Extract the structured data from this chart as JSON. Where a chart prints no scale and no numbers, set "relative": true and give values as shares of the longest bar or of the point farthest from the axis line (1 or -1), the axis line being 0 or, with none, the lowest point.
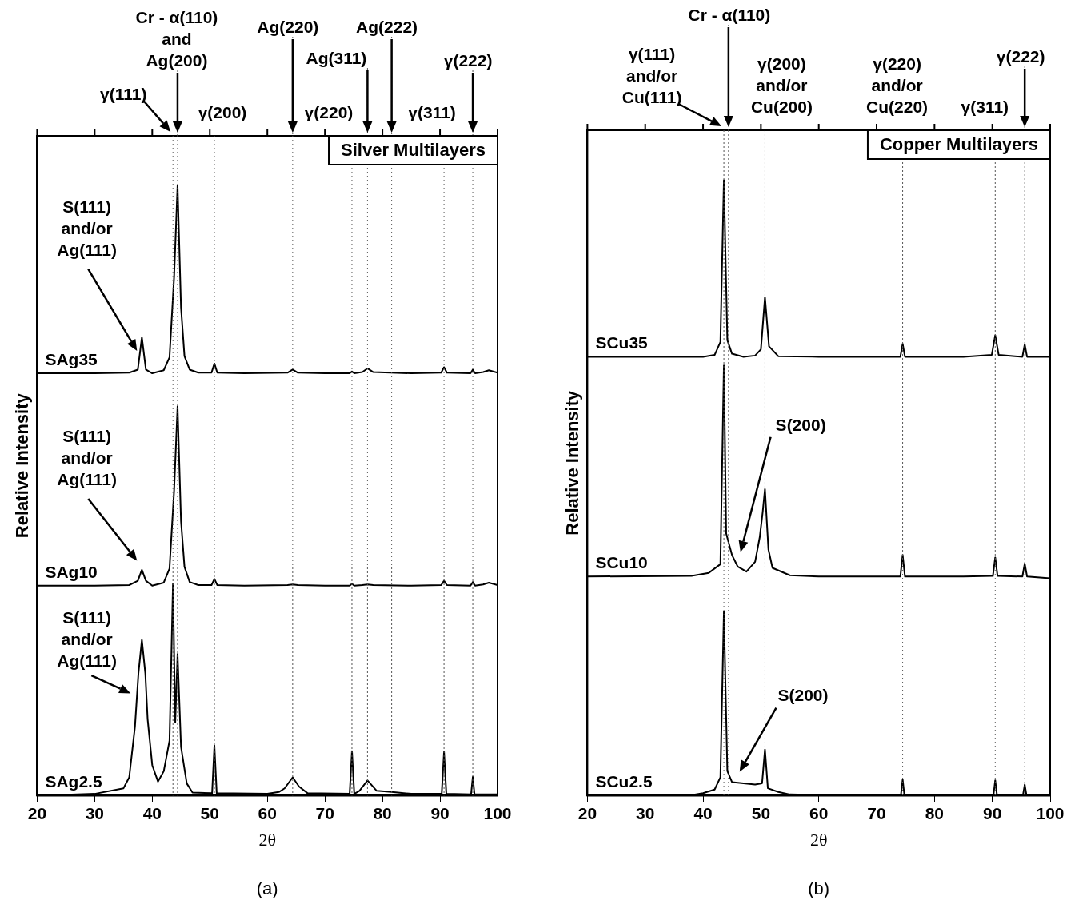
{
  "chart_data": [
    {
      "type": "line",
      "title": "Silver Multilayers",
      "xlabel": "2θ",
      "ylabel": "Relative Intensity",
      "relative": true,
      "xlim": [
        20,
        100
      ],
      "xticks": [
        20,
        30,
        40,
        50,
        60,
        70,
        80,
        90,
        100
      ],
      "grid": false,
      "marker": "none",
      "line_style": "solid",
      "series": [
        {
          "name": "SAg35",
          "color": "#000000",
          "x": [
            20,
            30,
            36,
            37.5,
            38.2,
            38.9,
            40,
            42,
            43,
            43.8,
            44.4,
            45,
            45.6,
            46.5,
            48,
            50.3,
            50.8,
            51.3,
            56,
            63.5,
            64.4,
            65.3,
            70,
            74.3,
            74.7,
            75.1,
            76.5,
            77.4,
            78.4,
            85,
            90.2,
            90.7,
            91.2,
            95.3,
            95.7,
            96.1,
            97.5,
            98.5,
            100
          ],
          "values": [
            0.692,
            0.692,
            0.693,
            0.698,
            0.751,
            0.698,
            0.692,
            0.697,
            0.718,
            0.85,
            1.0,
            0.8,
            0.72,
            0.698,
            0.693,
            0.693,
            0.708,
            0.693,
            0.692,
            0.693,
            0.698,
            0.693,
            0.692,
            0.692,
            0.695,
            0.692,
            0.694,
            0.7,
            0.694,
            0.692,
            0.693,
            0.702,
            0.693,
            0.692,
            0.698,
            0.692,
            0.694,
            0.697,
            0.693
          ]
        },
        {
          "name": "SAg10",
          "color": "#000000",
          "x": [
            20,
            30,
            36,
            37.5,
            38.2,
            38.9,
            40,
            42,
            43,
            43.8,
            44.4,
            45,
            45.6,
            46.5,
            48,
            50.3,
            50.8,
            51.3,
            56,
            63.5,
            64.4,
            65.3,
            70,
            74.3,
            74.7,
            75.1,
            76.5,
            77.4,
            78.4,
            85,
            90.2,
            90.7,
            91.2,
            95.3,
            95.7,
            96.1,
            97.5,
            98.5,
            100
          ],
          "values": [
            0.344,
            0.344,
            0.345,
            0.352,
            0.37,
            0.352,
            0.344,
            0.349,
            0.372,
            0.5,
            0.638,
            0.45,
            0.375,
            0.35,
            0.345,
            0.345,
            0.355,
            0.345,
            0.344,
            0.345,
            0.346,
            0.345,
            0.344,
            0.344,
            0.347,
            0.344,
            0.345,
            0.346,
            0.345,
            0.344,
            0.345,
            0.352,
            0.345,
            0.344,
            0.35,
            0.344,
            0.346,
            0.349,
            0.345
          ]
        },
        {
          "name": "SAg2.5",
          "color": "#000000",
          "x": [
            20,
            30,
            35,
            36,
            37,
            37.6,
            38.2,
            38.8,
            39.2,
            40,
            41,
            42,
            43,
            43.6,
            44.0,
            44.4,
            45,
            46,
            47,
            50.4,
            50.8,
            51.2,
            60,
            62,
            63,
            64.4,
            65.5,
            67,
            74.3,
            74.7,
            75.1,
            76,
            77.4,
            79,
            81.6,
            85,
            90.3,
            90.7,
            91.1,
            95.4,
            95.7,
            96,
            100
          ],
          "values": [
            0,
            0.003,
            0.012,
            0.03,
            0.113,
            0.2,
            0.255,
            0.2,
            0.125,
            0.05,
            0.023,
            0.04,
            0.09,
            0.347,
            0.12,
            0.232,
            0.08,
            0.02,
            0.005,
            0.004,
            0.082,
            0.004,
            0.003,
            0.006,
            0.012,
            0.03,
            0.015,
            0.004,
            0.003,
            0.073,
            0.003,
            0.008,
            0.025,
            0.008,
            0.006,
            0.003,
            0.003,
            0.072,
            0.003,
            0.002,
            0.031,
            0.002,
            0.002
          ]
        }
      ],
      "ref_lines": [
        {
          "axis": "x",
          "value": 43.6,
          "label": "γ(111)",
          "line_style": "dotted"
        },
        {
          "axis": "x",
          "value": 44.4,
          "label": "Cr - α(110)\nand\nAg(200)",
          "line_style": "dotted"
        },
        {
          "axis": "x",
          "value": 50.8,
          "label": "γ(200)",
          "line_style": "dotted"
        },
        {
          "axis": "x",
          "value": 64.4,
          "label": "Ag(220)",
          "line_style": "dotted"
        },
        {
          "axis": "x",
          "value": 74.7,
          "label": "γ(220)",
          "line_style": "dotted"
        },
        {
          "axis": "x",
          "value": 77.4,
          "label": "Ag(311)",
          "line_style": "dotted"
        },
        {
          "axis": "x",
          "value": 81.6,
          "label": "Ag(222)",
          "line_style": "dotted"
        },
        {
          "axis": "x",
          "value": 90.7,
          "label": "γ(311)",
          "line_style": "dotted"
        },
        {
          "axis": "x",
          "value": 95.7,
          "label": "γ(222)",
          "line_style": "dotted"
        }
      ],
      "annotations": [
        "S(111)\nand/or\nAg(111)",
        "S(111)\nand/or\nAg(111)",
        "S(111)\nand/or\nAg(111)",
        "(a)"
      ]
    },
    {
      "type": "line",
      "title": "Copper Multilayers",
      "xlabel": "2θ",
      "ylabel": "Relative Intensity",
      "relative": true,
      "xlim": [
        20,
        100
      ],
      "xticks": [
        20,
        30,
        40,
        50,
        60,
        70,
        80,
        90,
        100
      ],
      "grid": false,
      "marker": "none",
      "line_style": "solid",
      "series": [
        {
          "name": "SCu35",
          "color": "#000000",
          "x": [
            20,
            40,
            42,
            43,
            43.6,
            44.2,
            45,
            47,
            49,
            50,
            50.7,
            51.4,
            53,
            60,
            74.1,
            74.5,
            74.9,
            85,
            89.9,
            90.5,
            91.1,
            95.2,
            95.6,
            96,
            100
          ],
          "values": [
            0.713,
            0.713,
            0.716,
            0.737,
            1.0,
            0.74,
            0.718,
            0.713,
            0.715,
            0.725,
            0.81,
            0.73,
            0.714,
            0.713,
            0.713,
            0.734,
            0.713,
            0.713,
            0.716,
            0.748,
            0.716,
            0.713,
            0.733,
            0.713,
            0.713
          ]
        },
        {
          "name": "SCu10",
          "color": "#000000",
          "x": [
            20,
            38,
            41,
            43,
            43.6,
            44,
            45,
            46,
            47.5,
            49,
            49.8,
            50.3,
            50.7,
            51.3,
            52,
            55,
            60,
            74.1,
            74.5,
            74.9,
            85,
            90.1,
            90.5,
            90.9,
            95.2,
            95.6,
            96,
            100
          ],
          "values": [
            0.356,
            0.357,
            0.362,
            0.376,
            0.699,
            0.426,
            0.391,
            0.372,
            0.364,
            0.38,
            0.42,
            0.46,
            0.498,
            0.4,
            0.37,
            0.358,
            0.356,
            0.356,
            0.391,
            0.356,
            0.356,
            0.357,
            0.387,
            0.357,
            0.356,
            0.377,
            0.356,
            0.353
          ]
        },
        {
          "name": "SCu2.5",
          "color": "#000000",
          "x": [
            20,
            38,
            40,
            42,
            43,
            43.6,
            44.2,
            45,
            47,
            49,
            50.2,
            50.7,
            51.2,
            53,
            55,
            60,
            74.2,
            74.5,
            74.8,
            85,
            90.2,
            90.5,
            90.8,
            95.3,
            95.6,
            95.9,
            100
          ],
          "values": [
            0,
            0.001,
            0.004,
            0.01,
            0.03,
            0.299,
            0.04,
            0.022,
            0.02,
            0.018,
            0.02,
            0.075,
            0.012,
            0.006,
            0.002,
            0.001,
            0.001,
            0.026,
            0.001,
            0.001,
            0.001,
            0.025,
            0.001,
            0.001,
            0.018,
            0.001,
            0.001
          ]
        }
      ],
      "ref_lines": [
        {
          "axis": "x",
          "value": 43.6,
          "label": "γ(111)\nand/or\nCu(111)",
          "line_style": "dotted"
        },
        {
          "axis": "x",
          "value": 44.4,
          "label": "Cr - α(110)",
          "line_style": "dotted"
        },
        {
          "axis": "x",
          "value": 50.7,
          "label": "γ(200)\nand/or\nCu(200)",
          "line_style": "dotted"
        },
        {
          "axis": "x",
          "value": 74.5,
          "label": "γ(220)\nand/or\nCu(220)",
          "line_style": "dotted"
        },
        {
          "axis": "x",
          "value": 90.5,
          "label": "γ(311)",
          "line_style": "dotted"
        },
        {
          "axis": "x",
          "value": 95.6,
          "label": "γ(222)",
          "line_style": "dotted"
        }
      ],
      "annotations": [
        "S(200)",
        "S(200)",
        "(b)"
      ]
    }
  ]
}
